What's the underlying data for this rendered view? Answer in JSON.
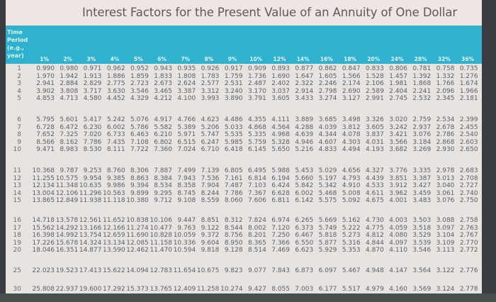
{
  "title": "Interest Factors for the Present Value of an Annuity of One Dollar",
  "period_header": [
    "Time",
    "Period",
    "(e.g.,",
    "year)"
  ],
  "rates": [
    "1%",
    "2%",
    "3%",
    "4%",
    "5%",
    "6%",
    "7%",
    "8%",
    "9%",
    "10%",
    "12%",
    "14%",
    "16%",
    "18%",
    "20%",
    "24%",
    "28%",
    "32%",
    "36%"
  ],
  "rows": [
    {
      "period": "1",
      "values": [
        "0.990",
        "0.980",
        "0.971",
        "0.962",
        "0.952",
        "0.943",
        "0.935",
        "0.926",
        "0.917",
        "0.909",
        "0.893",
        "0.877",
        "0.862",
        "0.847",
        "0.833",
        "0.806",
        "0.781",
        "0.758",
        "0.735"
      ]
    },
    {
      "period": "2",
      "values": [
        "1.970",
        "1.942",
        "1.913",
        "1.886",
        "1.859",
        "1.833",
        "1.808",
        "1.783",
        "1.759",
        "1.736",
        "1.690",
        "1.647",
        "1.605",
        "1.566",
        "1.528",
        "1.457",
        "1.392",
        "1.332",
        "1.276"
      ]
    },
    {
      "period": "3",
      "values": [
        "2.941",
        "2.884",
        "2.829",
        "2.775",
        "2.723",
        "2.673",
        "2.624",
        "2.577",
        "2.531",
        "2.487",
        "2.402",
        "2.322",
        "2.246",
        "2.174",
        "2.106",
        "1.981",
        "1.868",
        "1.766",
        "1.674"
      ]
    },
    {
      "period": "4",
      "values": [
        "3.902",
        "3.808",
        "3.717",
        "3.630",
        "3.546",
        "3.465",
        "3.387",
        "3.312",
        "3.240",
        "3.170",
        "3.037",
        "2.914",
        "2.798",
        "2.690",
        "2.589",
        "2.404",
        "2.241",
        "2.096",
        "1.966"
      ]
    },
    {
      "period": "5",
      "values": [
        "4.853",
        "4.713",
        "4.580",
        "4.452",
        "4.329",
        "4.212",
        "4.100",
        "3.993",
        "3.890",
        "3.791",
        "3.605",
        "3.433",
        "3.274",
        "3.127",
        "2.991",
        "2.745",
        "2.532",
        "2.345",
        "2.181"
      ]
    },
    {
      "period": "6",
      "values": [
        "5.795",
        "5.601",
        "5.417",
        "5.242",
        "5.076",
        "4.917",
        "4.766",
        "4.623",
        "4.486",
        "4.355",
        "4.111",
        "3.889",
        "3.685",
        "3.498",
        "3.326",
        "3.020",
        "2.759",
        "2.534",
        "2.399"
      ]
    },
    {
      "period": "7",
      "values": [
        "6.728",
        "6.472",
        "6.230",
        "6.002",
        "5.786",
        "5.582",
        "5.389",
        "5.206",
        "5.033",
        "4.868",
        "4.564",
        "4.288",
        "4.039",
        "3.812",
        "3.605",
        "3.242",
        "2.937",
        "2.678",
        "2.455"
      ]
    },
    {
      "period": "8",
      "values": [
        "7.652",
        "7.325",
        "7.020",
        "6.733",
        "6.463",
        "6.210",
        "5.971",
        "5.747",
        "5.535",
        "5.335",
        "4.968",
        "4.639",
        "4.344",
        "4.078",
        "3.837",
        "3.421",
        "3.076",
        "2.786",
        "2.540"
      ]
    },
    {
      "period": "9",
      "values": [
        "8.566",
        "8.162",
        "7.786",
        "7.435",
        "7.108",
        "6.802",
        "6.515",
        "6.247",
        "5.985",
        "5.759",
        "5.328",
        "4.946",
        "4.607",
        "4.303",
        "4.031",
        "3.566",
        "3.184",
        "2.868",
        "2.603"
      ]
    },
    {
      "period": "10",
      "values": [
        "9.471",
        "8.983",
        "8.530",
        "8.111",
        "7.722",
        "7.360",
        "7.024",
        "6.710",
        "6.418",
        "6.145",
        "5.650",
        "5.216",
        "4.833",
        "4.494",
        "4.193",
        "3.682",
        "3.269",
        "2.930",
        "2.650"
      ]
    },
    {
      "period": "11",
      "values": [
        "10.368",
        "9.787",
        "9.253",
        "8.760",
        "8.306",
        "7.887",
        "7.499",
        "7.139",
        "6.805",
        "6.495",
        "5.988",
        "5.453",
        "5.029",
        "4.656",
        "4.327",
        "3.776",
        "3.335",
        "2.978",
        "2.683"
      ]
    },
    {
      "period": "12",
      "values": [
        "11.255",
        "10.575",
        "9.954",
        "9.385",
        "8.863",
        "8.384",
        "7.943",
        "7.536",
        "7.161",
        "6.814",
        "6.194",
        "5.660",
        "5.197",
        "4.793",
        "4.439",
        "3.851",
        "3.387",
        "3.013",
        "2.708"
      ]
    },
    {
      "period": "13",
      "values": [
        "12.134",
        "11.348",
        "10.635",
        "9.986",
        "9.394",
        "8.534",
        "8.358",
        "7.904",
        "7.487",
        "7.103",
        "6.424",
        "5.842",
        "5.342",
        "4.910",
        "4.533",
        "3.912",
        "3.427",
        "3.040",
        "2.727"
      ]
    },
    {
      "period": "14",
      "values": [
        "13.004",
        "12.106",
        "11.296",
        "10.563",
        "9.899",
        "9.295",
        "8.745",
        "8.244",
        "7.786",
        "7.367",
        "6.628",
        "6.002",
        "5.468",
        "5.008",
        "4.611",
        "3.962",
        "3.459",
        "3.061",
        "2.740"
      ]
    },
    {
      "period": "15",
      "values": [
        "13.865",
        "12.849",
        "11.938",
        "11.118",
        "10.380",
        "9.712",
        "9.108",
        "8.559",
        "8.060",
        "7.606",
        "6.811",
        "6.142",
        "5.575",
        "5.092",
        "4.675",
        "4.001",
        "3.483",
        "3.076",
        "2.750"
      ]
    },
    {
      "period": "16",
      "values": [
        "14.718",
        "13.578",
        "12.561",
        "11.652",
        "10.838",
        "10.106",
        "9.447",
        "8.851",
        "8.312",
        "7.824",
        "6.974",
        "6.265",
        "5.669",
        "5.162",
        "4.730",
        "4.003",
        "3.503",
        "3.088",
        "2.758"
      ]
    },
    {
      "period": "17",
      "values": [
        "15.562",
        "14.292",
        "13.166",
        "12.166",
        "11.274",
        "10.477",
        "9.763",
        "9.122",
        "8.544",
        "8.002",
        "7.120",
        "6.373",
        "5.749",
        "5.222",
        "4.775",
        "4.059",
        "3.518",
        "3.097",
        "2.763"
      ]
    },
    {
      "period": "18",
      "values": [
        "16.398",
        "14.992",
        "13.754",
        "12.659",
        "11.690",
        "10.828",
        "10.059",
        "9.372",
        "8.756",
        "8.201",
        "7.250",
        "6.467",
        "5.818",
        "5.273",
        "4.812",
        "4.080",
        "3.529",
        "3.104",
        "2.767"
      ]
    },
    {
      "period": "19",
      "values": [
        "17.226",
        "15.678",
        "14.324",
        "13.134",
        "12.085",
        "11.158",
        "10.336",
        "9.604",
        "8.950",
        "8.365",
        "7.366",
        "6.550",
        "5.877",
        "5.316",
        "4.844",
        "4.097",
        "3.539",
        "3.109",
        "2.770"
      ]
    },
    {
      "period": "20",
      "values": [
        "18.046",
        "16.351",
        "14.877",
        "13.590",
        "12.462",
        "11.470",
        "10.594",
        "9.818",
        "9.128",
        "8.514",
        "7.469",
        "6.623",
        "5.929",
        "5.353",
        "4.870",
        "4.110",
        "3.546",
        "3.113",
        "2.772"
      ]
    },
    {
      "period": "25",
      "values": [
        "22.023",
        "19.523",
        "17.413",
        "15.622",
        "14.094",
        "12.783",
        "11.654",
        "10.675",
        "9.823",
        "9.077",
        "7.843",
        "6.873",
        "6.097",
        "5.467",
        "4.948",
        "4.147",
        "3.564",
        "3.122",
        "2.776"
      ]
    },
    {
      "period": "30",
      "values": [
        "25.808",
        "22.937",
        "19.600",
        "17.292",
        "15.373",
        "13.765",
        "12.409",
        "11.258",
        "10.274",
        "9.427",
        "8.055",
        "7.003",
        "6.177",
        "5.517",
        "4.979",
        "4.160",
        "3.569",
        "3.124",
        "2.778"
      ]
    }
  ]
}
